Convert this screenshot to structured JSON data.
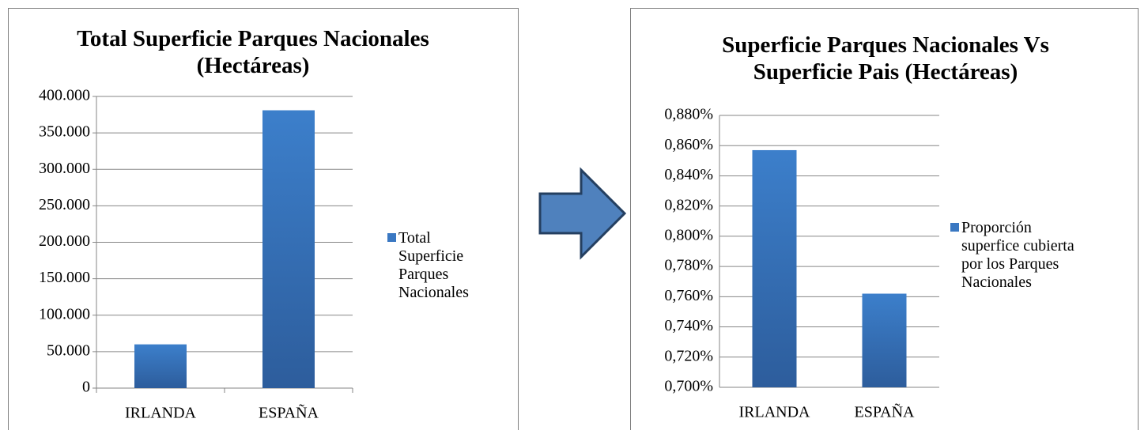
{
  "chart_data": [
    {
      "type": "bar",
      "title": "Total Superficie Parques Nacionales (Hectáreas)",
      "categories": [
        "IRLANDA",
        "ESPAÑA"
      ],
      "series": [
        {
          "name": "Total Superficie Parques Nacionales",
          "color": "#3a78c2",
          "values": [
            60000,
            381000
          ]
        }
      ],
      "ylim": [
        0,
        400000
      ],
      "yticks": [
        0,
        {
          "value": 50000,
          "label": "50.000"
        },
        {
          "value": 100000,
          "label": "100.000"
        },
        {
          "value": 150000,
          "label": "150.000"
        },
        {
          "value": 200000,
          "label": "200.000"
        },
        {
          "value": 250000,
          "label": "250.000"
        },
        {
          "value": 300000,
          "label": "300.000"
        },
        {
          "value": 350000,
          "label": "350.000"
        },
        {
          "value": 400000,
          "label": "400.000"
        }
      ],
      "grid": true,
      "legend": "right"
    },
    {
      "type": "bar",
      "title": "Superficie Parques Nacionales Vs Superficie Pais (Hectáreas)",
      "categories": [
        "IRLANDA",
        "ESPAÑA"
      ],
      "series": [
        {
          "name": "Proporción superfice cubierta por los Parques Nacionales",
          "color": "#3a78c2",
          "values": [
            0.857,
            0.762
          ]
        }
      ],
      "ylim": [
        0.7,
        0.88
      ],
      "yticks": [
        {
          "value": 0.7,
          "label": "0,700%"
        },
        {
          "value": 0.72,
          "label": "0,720%"
        },
        {
          "value": 0.74,
          "label": "0,740%"
        },
        {
          "value": 0.76,
          "label": "0,760%"
        },
        {
          "value": 0.78,
          "label": "0,780%"
        },
        {
          "value": 0.8,
          "label": "0,800%"
        },
        {
          "value": 0.82,
          "label": "0,820%"
        },
        {
          "value": 0.84,
          "label": "0,840%"
        },
        {
          "value": 0.86,
          "label": "0,860%"
        },
        {
          "value": 0.88,
          "label": "0,880%"
        }
      ],
      "grid": true,
      "legend": "right"
    }
  ]
}
